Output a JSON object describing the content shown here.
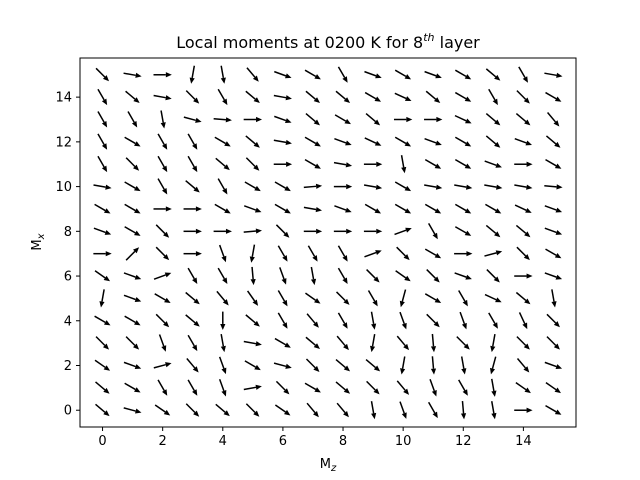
{
  "chart_data": {
    "type": "quiver",
    "title": {
      "main": "Local moments at 0200 K for 8",
      "sup": "th",
      "tail": " layer"
    },
    "xlabel": {
      "main": "M",
      "sub": "z"
    },
    "ylabel": {
      "main": "M",
      "sub": "x"
    },
    "xlim": [
      -0.75,
      15.75
    ],
    "ylim": [
      -0.75,
      15.75
    ],
    "xticks": [
      0,
      2,
      4,
      6,
      8,
      10,
      12,
      14
    ],
    "yticks": [
      0,
      2,
      4,
      6,
      8,
      10,
      12,
      14
    ],
    "grid": false,
    "arrow_color": "#000000",
    "arrow_length": 0.7,
    "angles_deg": [
      [
        -40,
        -15,
        -35,
        -45,
        -40,
        -45,
        -35,
        -50,
        -50,
        -80,
        -70,
        -60,
        -85,
        -80,
        0,
        -30
      ],
      [
        -40,
        -30,
        -60,
        -60,
        -70,
        10,
        -45,
        -30,
        -40,
        -45,
        -50,
        -70,
        -60,
        -80,
        -35,
        -35
      ],
      [
        -35,
        -20,
        15,
        -50,
        -70,
        -30,
        -15,
        -45,
        -40,
        -40,
        -100,
        -85,
        -80,
        -105,
        -50,
        -20
      ],
      [
        -45,
        -45,
        -70,
        -60,
        -80,
        -10,
        -30,
        -40,
        -50,
        -100,
        -50,
        -85,
        -45,
        -100,
        -45,
        -45
      ],
      [
        -30,
        -30,
        -45,
        -40,
        -90,
        -40,
        -60,
        -50,
        -60,
        -80,
        -70,
        -45,
        -70,
        -60,
        -65,
        -45
      ],
      [
        -100,
        -20,
        -30,
        -40,
        -50,
        -55,
        -60,
        -35,
        -45,
        -60,
        -105,
        -30,
        -60,
        -25,
        -40,
        -80
      ],
      [
        -35,
        -20,
        20,
        -60,
        -60,
        -85,
        -70,
        -80,
        -60,
        -45,
        -35,
        -45,
        -20,
        -45,
        0,
        -20
      ],
      [
        0,
        45,
        -45,
        0,
        -70,
        -100,
        -60,
        -60,
        -60,
        20,
        -45,
        -30,
        0,
        15,
        -45,
        -30
      ],
      [
        -20,
        -30,
        -45,
        0,
        0,
        5,
        -45,
        0,
        0,
        0,
        20,
        -60,
        -30,
        -40,
        -40,
        -20
      ],
      [
        -30,
        -30,
        0,
        0,
        -30,
        -20,
        -30,
        -10,
        -20,
        -30,
        -30,
        -30,
        -30,
        -30,
        -25,
        -20
      ],
      [
        -10,
        -30,
        -60,
        -40,
        -60,
        -30,
        -30,
        5,
        0,
        -10,
        -30,
        -10,
        -10,
        -10,
        -10,
        -5
      ],
      [
        -60,
        -45,
        -60,
        -60,
        -40,
        -45,
        0,
        -30,
        -10,
        0,
        -80,
        -30,
        -30,
        -20,
        0,
        -30
      ],
      [
        -60,
        -30,
        -60,
        -60,
        -30,
        -40,
        -10,
        -30,
        -20,
        -25,
        -30,
        -20,
        -30,
        -40,
        -20,
        -40
      ],
      [
        -60,
        -60,
        -80,
        -15,
        -5,
        0,
        -20,
        -40,
        -30,
        -40,
        0,
        0,
        -25,
        -40,
        -40,
        -50
      ],
      [
        -60,
        -40,
        -10,
        -45,
        -60,
        -40,
        -10,
        -40,
        -40,
        -30,
        -25,
        -40,
        -30,
        -60,
        -45,
        -30
      ],
      [
        -45,
        -10,
        0,
        -100,
        -80,
        -50,
        -20,
        -30,
        -60,
        -20,
        -30,
        -20,
        -30,
        -40,
        -60,
        -10
      ]
    ]
  }
}
